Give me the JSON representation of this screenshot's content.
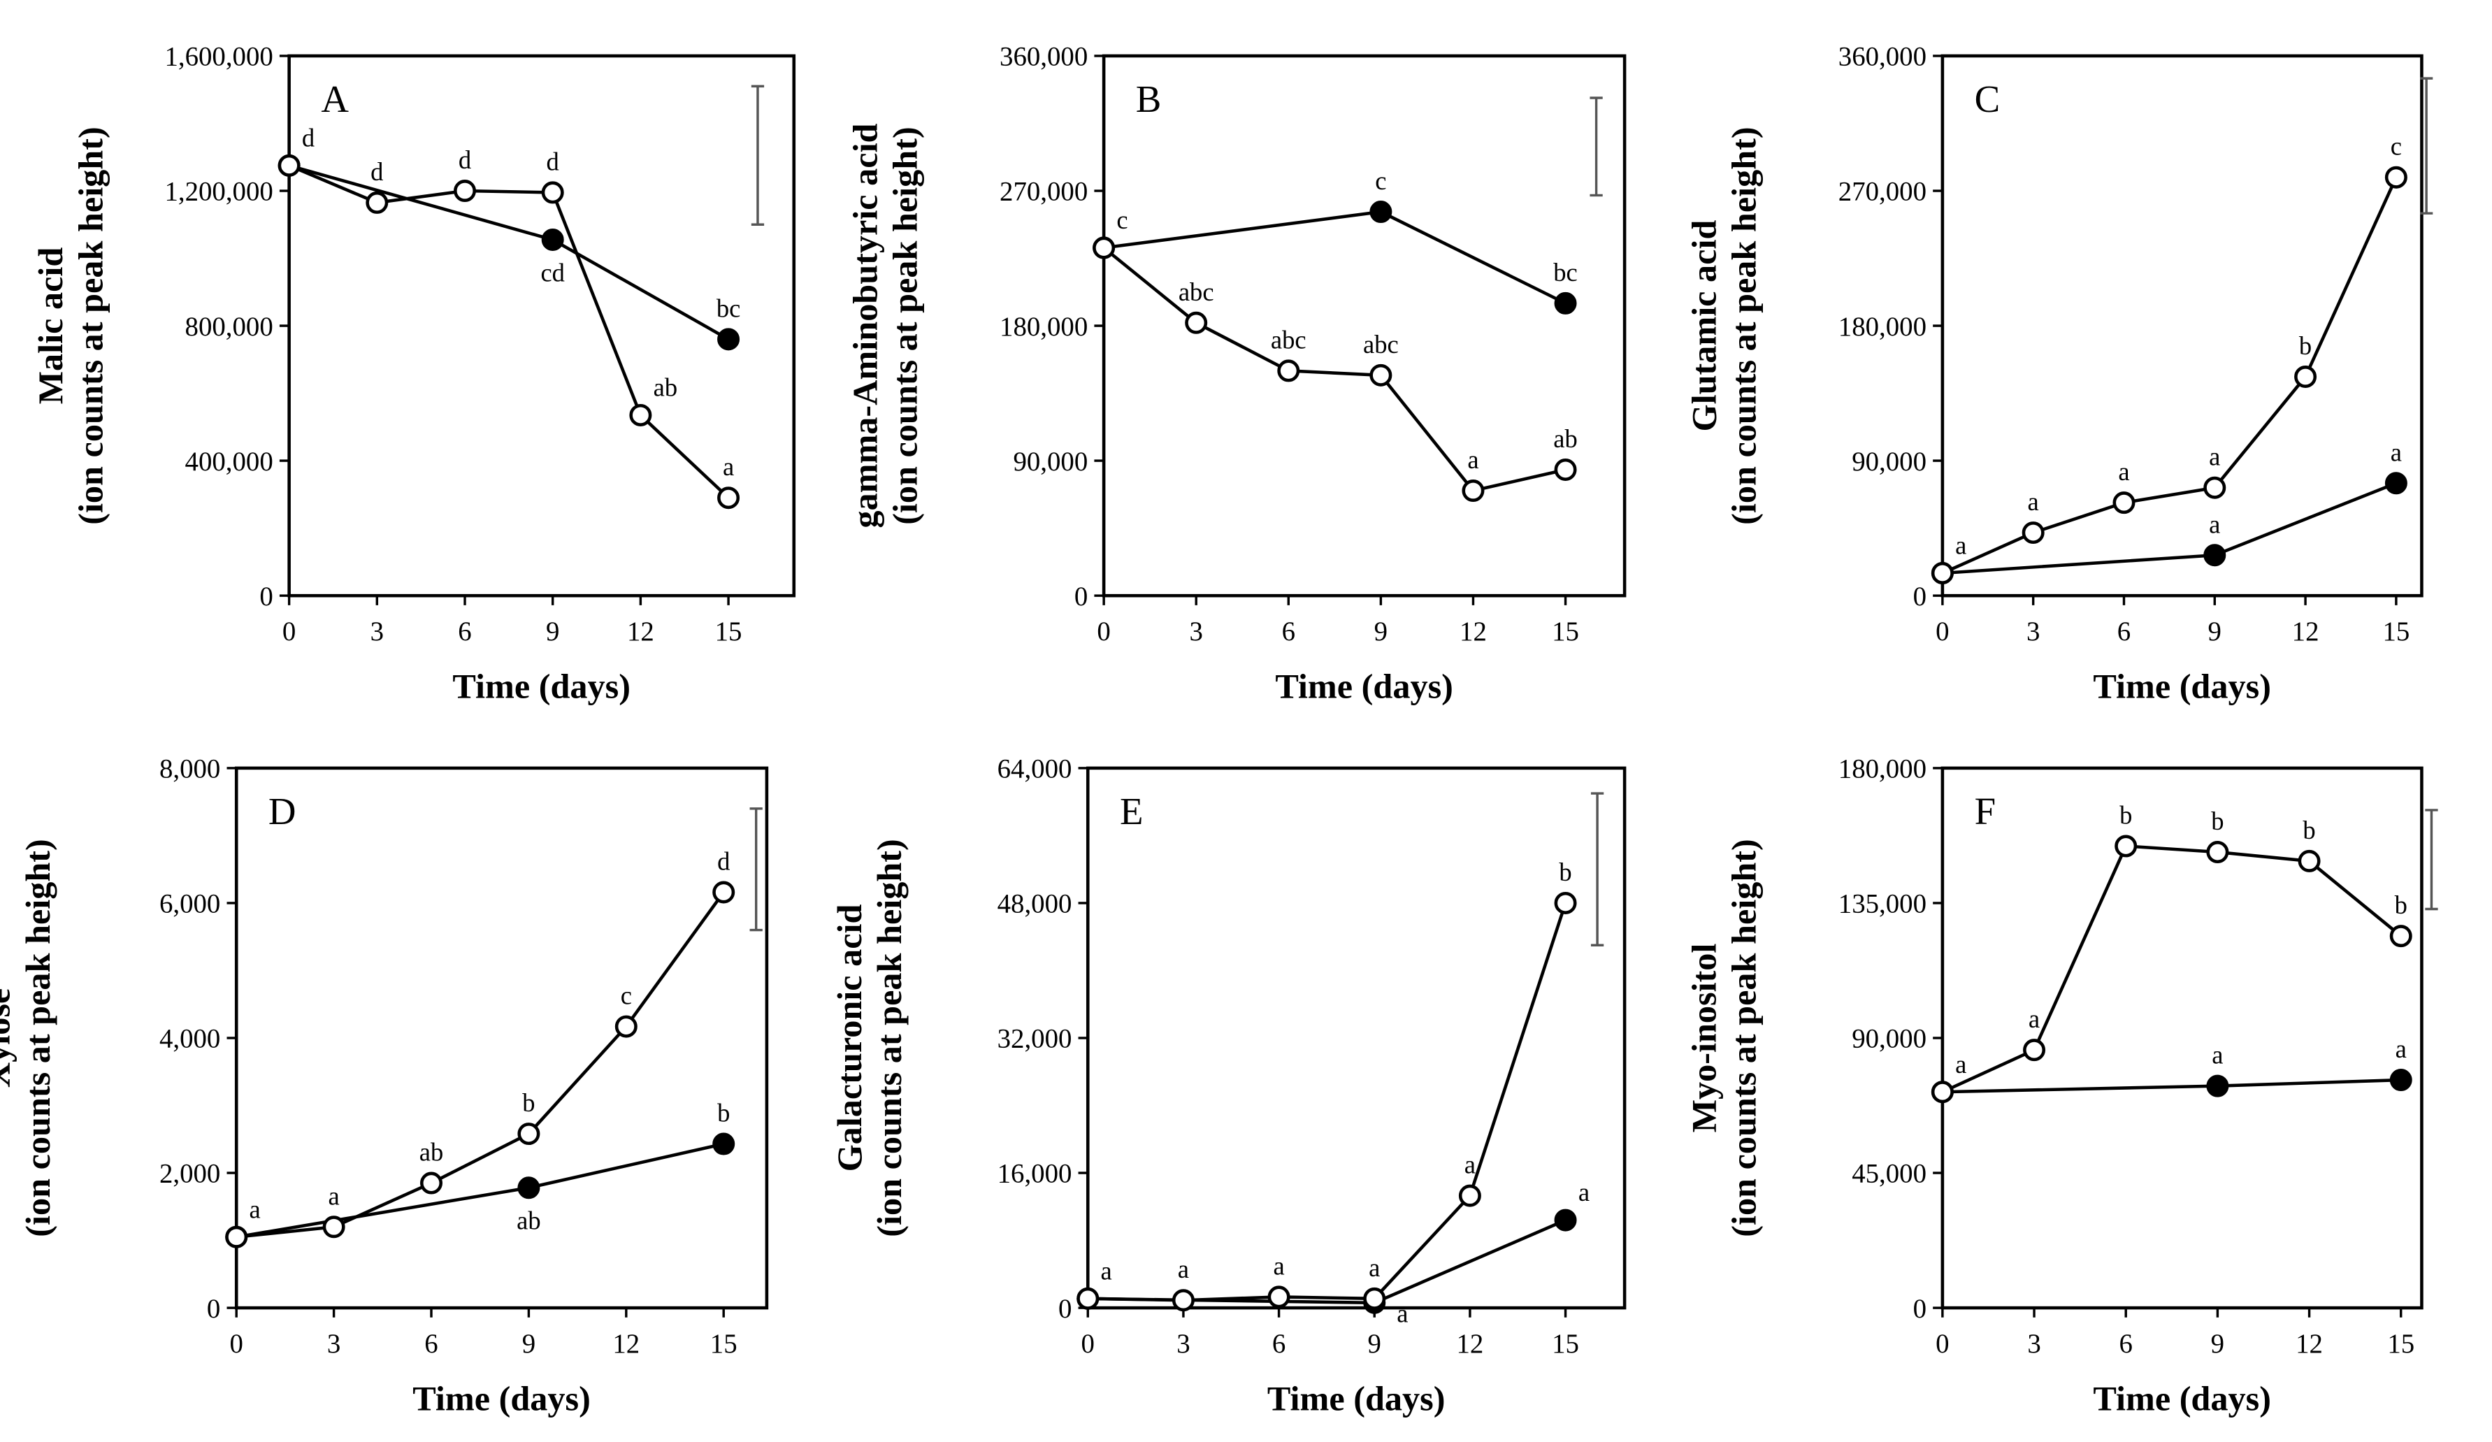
{
  "chart_data": [
    {
      "panel": "A",
      "type": "line",
      "ylabel": [
        "Malic acid",
        "(ion counts at peak height)"
      ],
      "xlabel": "Time (days)",
      "ylim": [
        0,
        1600000
      ],
      "yticks": [
        "0",
        "400,000",
        "800,000",
        "1,200,000",
        "1,600,000"
      ],
      "ytick_values": [
        0,
        400000,
        800000,
        1200000,
        1600000
      ],
      "xticks": [
        0,
        3,
        6,
        9,
        12,
        15
      ],
      "series": [
        {
          "name": "open",
          "marker": "open-circle",
          "x": [
            0,
            3,
            6,
            9,
            12,
            15
          ],
          "y": [
            1275000,
            1165000,
            1200000,
            1195000,
            535000,
            290000
          ],
          "labels": [
            "d",
            "d",
            "d",
            "d",
            "ab",
            "a"
          ],
          "label_pos": [
            "above-right",
            "above",
            "above",
            "above",
            "above-right",
            "above"
          ]
        },
        {
          "name": "filled",
          "marker": "filled-circle",
          "x": [
            0,
            9,
            15
          ],
          "y": [
            1275000,
            1055000,
            760000
          ],
          "labels": [
            "",
            "cd",
            "bc"
          ],
          "label_pos": [
            "above",
            "below",
            "above"
          ]
        }
      ],
      "error_bar": [
        1100000,
        1510000
      ]
    },
    {
      "panel": "B",
      "type": "line",
      "ylabel": [
        "gamma-Aminobutyric acid",
        "(ion counts at peak height)"
      ],
      "xlabel": "Time (days)",
      "ylim": [
        0,
        360000
      ],
      "yticks": [
        "0",
        "90,000",
        "180,000",
        "270,000",
        "360,000"
      ],
      "ytick_values": [
        0,
        90000,
        180000,
        270000,
        360000
      ],
      "xticks": [
        0,
        3,
        6,
        9,
        12,
        15
      ],
      "series": [
        {
          "name": "open",
          "marker": "open-circle",
          "x": [
            0,
            3,
            6,
            9,
            12,
            15
          ],
          "y": [
            232000,
            182000,
            150000,
            147000,
            70000,
            84000
          ],
          "labels": [
            "",
            "abc",
            "abc",
            "abc",
            "a",
            "ab"
          ],
          "label_pos": [
            "above",
            "above",
            "above",
            "above",
            "above",
            "above"
          ]
        },
        {
          "name": "filled",
          "marker": "filled-circle",
          "x": [
            0,
            9,
            15
          ],
          "y": [
            232000,
            256000,
            195000
          ],
          "labels": [
            "c",
            "c",
            "bc"
          ],
          "label_pos": [
            "above-right",
            "above",
            "above"
          ]
        }
      ],
      "error_bar": [
        267000,
        332000
      ]
    },
    {
      "panel": "C",
      "type": "line",
      "ylabel": [
        "Glutamic acid",
        "(ion counts at peak height)"
      ],
      "xlabel": "Time (days)",
      "ylim": [
        0,
        360000
      ],
      "yticks": [
        "0",
        "90,000",
        "180,000",
        "270,000",
        "360,000"
      ],
      "ytick_values": [
        0,
        90000,
        180000,
        270000,
        360000
      ],
      "xticks": [
        0,
        3,
        6,
        9,
        12,
        15
      ],
      "series": [
        {
          "name": "open",
          "marker": "open-circle",
          "x": [
            0,
            3,
            6,
            9,
            12,
            15
          ],
          "y": [
            15000,
            42000,
            62000,
            72000,
            146000,
            279000
          ],
          "labels": [
            "a",
            "a",
            "a",
            "a",
            "b",
            "c"
          ],
          "label_pos": [
            "above-right",
            "above",
            "above",
            "above",
            "above",
            "above"
          ]
        },
        {
          "name": "filled",
          "marker": "filled-circle",
          "x": [
            0,
            9,
            15
          ],
          "y": [
            15000,
            27000,
            75000
          ],
          "labels": [
            "",
            "a",
            "a"
          ],
          "label_pos": [
            "above",
            "above",
            "above"
          ]
        }
      ],
      "error_bar": [
        255000,
        345000
      ]
    },
    {
      "panel": "D",
      "type": "line",
      "ylabel": [
        "Xylose",
        "(ion counts at peak height)"
      ],
      "xlabel": "Time (days)",
      "ylim": [
        0,
        8000
      ],
      "yticks": [
        "0",
        "2,000",
        "4,000",
        "6,000",
        "8,000"
      ],
      "ytick_values": [
        0,
        2000,
        4000,
        6000,
        8000
      ],
      "xticks": [
        0,
        3,
        6,
        9,
        12,
        15
      ],
      "series": [
        {
          "name": "open",
          "marker": "open-circle",
          "x": [
            0,
            3,
            6,
            9,
            12,
            15
          ],
          "y": [
            1050,
            1200,
            1850,
            2580,
            4170,
            6160
          ],
          "labels": [
            "a",
            "a",
            "ab",
            "b",
            "c",
            "d"
          ],
          "label_pos": [
            "above-right",
            "above",
            "above",
            "above",
            "above",
            "above"
          ]
        },
        {
          "name": "filled",
          "marker": "filled-circle",
          "x": [
            0,
            9,
            15
          ],
          "y": [
            1050,
            1780,
            2430
          ],
          "labels": [
            "",
            "ab",
            "b"
          ],
          "label_pos": [
            "above",
            "below",
            "above"
          ]
        }
      ],
      "error_bar": [
        5600,
        7400
      ]
    },
    {
      "panel": "E",
      "type": "line",
      "ylabel": [
        "Galacturonic acid",
        "(ion counts at peak height)"
      ],
      "xlabel": "Time (days)",
      "ylim": [
        0,
        64000
      ],
      "yticks": [
        "0",
        "16,000",
        "32,000",
        "48,000",
        "64,000"
      ],
      "ytick_values": [
        0,
        16000,
        32000,
        48000,
        64000
      ],
      "xticks": [
        0,
        3,
        6,
        9,
        12,
        15
      ],
      "series": [
        {
          "name": "open",
          "marker": "open-circle",
          "x": [
            0,
            3,
            6,
            9,
            12,
            15
          ],
          "y": [
            1100,
            900,
            1300,
            1100,
            13300,
            48000
          ],
          "labels": [
            "a",
            "a",
            "a",
            "a",
            "a",
            "b"
          ],
          "label_pos": [
            "above-right",
            "above",
            "above",
            "above",
            "above",
            "above"
          ]
        },
        {
          "name": "filled",
          "marker": "filled-circle",
          "x": [
            0,
            9,
            15
          ],
          "y": [
            1100,
            600,
            10400
          ],
          "labels": [
            "",
            "a",
            "a"
          ],
          "label_pos": [
            "above",
            "right",
            "above-right"
          ]
        }
      ],
      "error_bar": [
        43000,
        61000
      ]
    },
    {
      "panel": "F",
      "type": "line",
      "ylabel": [
        "Myo-inositol",
        "(ion counts at peak height)"
      ],
      "xlabel": "Time (days)",
      "ylim": [
        0,
        180000
      ],
      "yticks": [
        "0",
        "45,000",
        "90,000",
        "135,000",
        "180,000"
      ],
      "ytick_values": [
        0,
        45000,
        90000,
        135000,
        180000
      ],
      "xticks": [
        0,
        3,
        6,
        9,
        12,
        15
      ],
      "series": [
        {
          "name": "open",
          "marker": "open-circle",
          "x": [
            0,
            3,
            6,
            9,
            12,
            15
          ],
          "y": [
            72000,
            86000,
            154000,
            152000,
            149000,
            124000
          ],
          "labels": [
            "a",
            "a",
            "b",
            "b",
            "b",
            "b"
          ],
          "label_pos": [
            "above-right",
            "above",
            "above",
            "above",
            "above",
            "above"
          ]
        },
        {
          "name": "filled",
          "marker": "filled-circle",
          "x": [
            0,
            9,
            15
          ],
          "y": [
            72000,
            74000,
            76000
          ],
          "labels": [
            "",
            "a",
            "a"
          ],
          "label_pos": [
            "above",
            "above",
            "above"
          ]
        }
      ],
      "error_bar": [
        133000,
        166000
      ]
    }
  ]
}
